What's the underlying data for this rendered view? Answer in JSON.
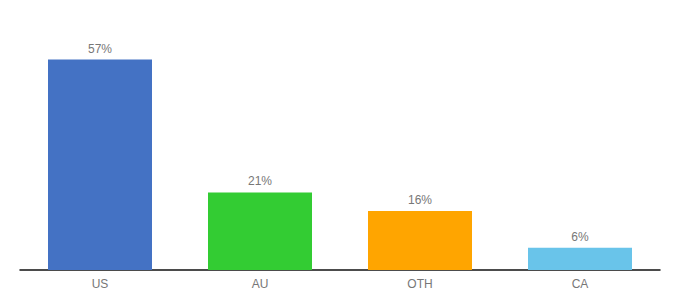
{
  "chart_data": {
    "type": "bar",
    "categories": [
      "US",
      "AU",
      "OTH",
      "CA"
    ],
    "values": [
      57,
      21,
      16,
      6
    ],
    "value_labels": [
      "57%",
      "21%",
      "16%",
      "6%"
    ],
    "colors": [
      "#4472C4",
      "#33CC33",
      "#FFA500",
      "#69C4EA"
    ],
    "ylim": [
      0,
      65
    ],
    "data_labels": true,
    "tick_labels": "x",
    "grid": false
  }
}
